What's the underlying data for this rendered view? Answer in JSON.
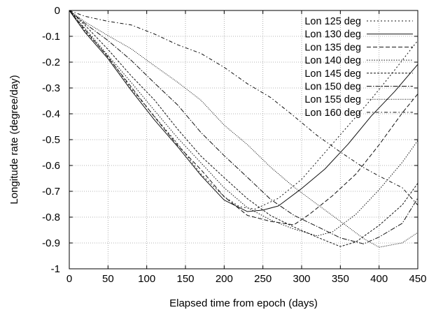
{
  "chart_data": {
    "type": "line",
    "title": "",
    "xlabel": "Elapsed time from epoch  (days)",
    "ylabel": "Longitude rate (degree/day)",
    "xlim": [
      0,
      450
    ],
    "ylim": [
      -1,
      0
    ],
    "x_ticks": [
      0,
      50,
      100,
      150,
      200,
      250,
      300,
      350,
      400,
      450
    ],
    "x_tick_labels": [
      "0",
      "50",
      "100",
      "150",
      "200",
      "250",
      "300",
      "350",
      "400",
      "450"
    ],
    "y_ticks": [
      0,
      -0.1,
      -0.2,
      -0.3,
      -0.4,
      -0.5,
      -0.6,
      -0.7,
      -0.8,
      -0.9,
      -1
    ],
    "y_tick_labels": [
      "0",
      "-0.1",
      "-0.2",
      "-0.3",
      "-0.4",
      "-0.5",
      "-0.6",
      "-0.7",
      "-0.8",
      "-0.9",
      "-1"
    ],
    "grid": true,
    "legend_position": "top-right",
    "series": [
      {
        "name": "Lon 125 deg",
        "dash": "2,3",
        "x": [
          0,
          20,
          50,
          80,
          110,
          140,
          170,
          200,
          220,
          240,
          270,
          300,
          330,
          360,
          390,
          420,
          450
        ],
        "y": [
          0,
          -0.08,
          -0.18,
          -0.3,
          -0.41,
          -0.52,
          -0.63,
          -0.72,
          -0.76,
          -0.77,
          -0.73,
          -0.65,
          -0.55,
          -0.45,
          -0.34,
          -0.23,
          -0.12
        ]
      },
      {
        "name": "Lon 130 deg",
        "dash": "",
        "x": [
          0,
          20,
          50,
          80,
          110,
          140,
          170,
          200,
          230,
          250,
          270,
          300,
          330,
          360,
          390,
          420,
          450
        ],
        "y": [
          0,
          -0.08,
          -0.19,
          -0.31,
          -0.42,
          -0.53,
          -0.64,
          -0.73,
          -0.78,
          -0.77,
          -0.76,
          -0.69,
          -0.61,
          -0.52,
          -0.41,
          -0.31,
          -0.21
        ]
      },
      {
        "name": "Lon 135 deg",
        "dash": "6,3",
        "x": [
          0,
          20,
          50,
          80,
          110,
          140,
          170,
          200,
          230,
          260,
          290,
          310,
          340,
          370,
          400,
          430,
          450
        ],
        "y": [
          0,
          -0.07,
          -0.18,
          -0.3,
          -0.41,
          -0.52,
          -0.62,
          -0.72,
          -0.79,
          -0.82,
          -0.83,
          -0.79,
          -0.72,
          -0.63,
          -0.52,
          -0.4,
          -0.32
        ]
      },
      {
        "name": "Lon 140 deg",
        "dash": "1.5,2",
        "x": [
          0,
          20,
          50,
          80,
          110,
          140,
          170,
          200,
          230,
          260,
          290,
          320,
          340,
          370,
          400,
          430,
          450
        ],
        "y": [
          0,
          -0.07,
          -0.17,
          -0.28,
          -0.39,
          -0.49,
          -0.59,
          -0.69,
          -0.76,
          -0.81,
          -0.85,
          -0.87,
          -0.86,
          -0.79,
          -0.69,
          -0.59,
          -0.5
        ]
      },
      {
        "name": "Lon 145 deg",
        "dash": "3,2",
        "x": [
          0,
          20,
          50,
          80,
          110,
          140,
          170,
          200,
          230,
          260,
          290,
          320,
          350,
          370,
          400,
          430,
          450
        ],
        "y": [
          0,
          -0.06,
          -0.15,
          -0.25,
          -0.35,
          -0.46,
          -0.56,
          -0.65,
          -0.73,
          -0.79,
          -0.84,
          -0.88,
          -0.91,
          -0.9,
          -0.83,
          -0.75,
          -0.67
        ]
      },
      {
        "name": "Lon 150 deg",
        "dash": "7,2,1.5,2",
        "x": [
          0,
          20,
          50,
          80,
          110,
          140,
          170,
          200,
          230,
          260,
          290,
          320,
          350,
          380,
          400,
          430,
          450
        ],
        "y": [
          0,
          -0.05,
          -0.12,
          -0.19,
          -0.28,
          -0.37,
          -0.47,
          -0.56,
          -0.65,
          -0.73,
          -0.79,
          -0.84,
          -0.88,
          -0.9,
          -0.88,
          -0.82,
          -0.73
        ]
      },
      {
        "name": "Lon 155 deg",
        "dash": "1,1.5",
        "x": [
          0,
          20,
          50,
          80,
          110,
          140,
          170,
          200,
          230,
          260,
          290,
          320,
          350,
          380,
          400,
          430,
          450
        ],
        "y": [
          0,
          -0.04,
          -0.1,
          -0.15,
          -0.21,
          -0.28,
          -0.35,
          -0.44,
          -0.52,
          -0.61,
          -0.68,
          -0.75,
          -0.82,
          -0.88,
          -0.92,
          -0.9,
          -0.86
        ]
      },
      {
        "name": "Lon 160 deg",
        "dash": "5,3,1.5,3",
        "x": [
          0,
          20,
          50,
          80,
          110,
          140,
          170,
          200,
          230,
          260,
          290,
          320,
          350,
          380,
          400,
          430,
          450
        ],
        "y": [
          0,
          -0.02,
          -0.04,
          -0.06,
          -0.09,
          -0.13,
          -0.17,
          -0.22,
          -0.28,
          -0.34,
          -0.41,
          -0.48,
          -0.55,
          -0.61,
          -0.64,
          -0.69,
          -0.75
        ]
      }
    ]
  }
}
